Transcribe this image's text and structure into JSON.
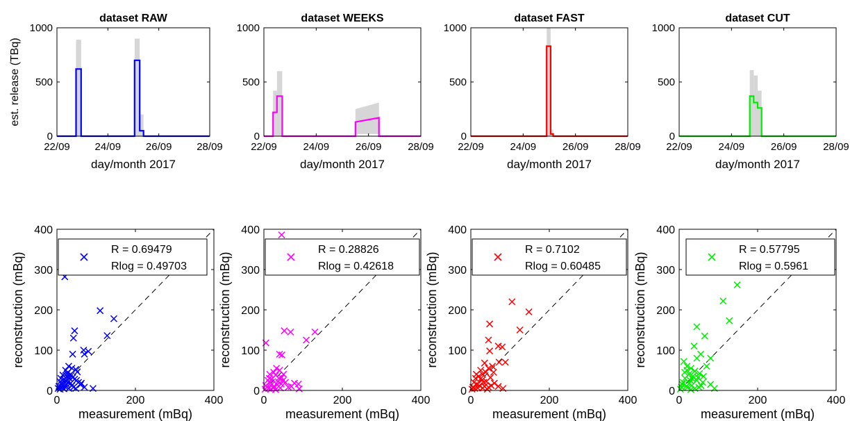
{
  "figure": {
    "top_row": {
      "ylabel": "est. release (TBq)",
      "xlabel": "day/month 2017",
      "ylim": [
        0,
        1000
      ],
      "yticks": [
        0,
        500,
        1000
      ],
      "xticks": [
        "22/09",
        "24/09",
        "26/09",
        "28/09"
      ],
      "band_color": "#d6d6d6"
    },
    "bottom_row": {
      "ylabel": "reconstruction (mBq)",
      "xlabel": "measurement (mBq)",
      "xlim": [
        0,
        400
      ],
      "ylim": [
        0,
        400
      ],
      "xticks": [
        0,
        200,
        400
      ],
      "yticks": [
        0,
        100,
        200,
        300,
        400
      ],
      "reference_line": "dashed y = x"
    }
  },
  "chart_data": [
    {
      "type": "line",
      "panel": "top",
      "title": "dataset RAW",
      "color": "#0000ff",
      "x_unit": "days since 22/09/2017",
      "x": [
        0,
        0.75,
        0.75,
        0.95,
        0.95,
        3.05,
        3.05,
        3.25,
        3.25,
        3.4,
        3.4,
        6
      ],
      "y": [
        0,
        0,
        620,
        620,
        0,
        0,
        700,
        700,
        50,
        50,
        0,
        0
      ],
      "uncertainty_band": [
        {
          "x0": 0.75,
          "x1": 0.95,
          "upper": 890
        },
        {
          "x0": 3.05,
          "x1": 3.25,
          "upper": 900
        },
        {
          "x0": 3.25,
          "x1": 3.4,
          "upper": 200
        }
      ]
    },
    {
      "type": "line",
      "panel": "top",
      "title": "dataset WEEKS",
      "color": "#ff00ff",
      "x_unit": "days since 22/09/2017",
      "x": [
        0,
        0.35,
        0.35,
        0.5,
        0.5,
        0.7,
        0.7,
        3.5,
        3.5,
        4.4,
        4.4,
        6
      ],
      "y": [
        0,
        0,
        220,
        220,
        370,
        370,
        0,
        0,
        130,
        170,
        0,
        0
      ],
      "uncertainty_band": [
        {
          "x0": 0.35,
          "x1": 0.5,
          "upper": 420
        },
        {
          "x0": 0.5,
          "x1": 0.7,
          "upper": 600
        },
        {
          "x0": 3.5,
          "x1": 4.4,
          "upper_start": 250,
          "upper_end": 310,
          "lower": 20
        }
      ]
    },
    {
      "type": "line",
      "panel": "top",
      "title": "dataset FAST",
      "color": "#ff0000",
      "x_unit": "days since 22/09/2017",
      "x": [
        0,
        2.9,
        2.9,
        3.05,
        3.05,
        3.15,
        3.15,
        6
      ],
      "y": [
        0,
        0,
        830,
        830,
        20,
        20,
        0,
        0
      ],
      "uncertainty_band": [
        {
          "x0": 2.9,
          "x1": 3.05,
          "upper": 1000
        },
        {
          "x0": 3.05,
          "x1": 3.15,
          "upper": 60
        }
      ]
    },
    {
      "type": "line",
      "panel": "top",
      "title": "dataset CUT",
      "color": "#00ee00",
      "x_unit": "days since 22/09/2017",
      "x": [
        0,
        2.7,
        2.7,
        2.85,
        2.85,
        3.0,
        3.0,
        3.15,
        3.15,
        6
      ],
      "y": [
        0,
        0,
        370,
        370,
        310,
        310,
        260,
        260,
        0,
        0
      ],
      "uncertainty_band": [
        {
          "x0": 2.7,
          "x1": 2.85,
          "upper": 610
        },
        {
          "x0": 2.85,
          "x1": 3.0,
          "upper": 560
        },
        {
          "x0": 3.0,
          "x1": 3.15,
          "upper": 420
        }
      ]
    },
    {
      "type": "scatter",
      "panel": "bottom",
      "color": "#0000ff",
      "legend": {
        "line1": "R = 0.69479",
        "line2": "Rlog = 0.49703"
      },
      "points": [
        [
          20,
          282
        ],
        [
          110,
          198
        ],
        [
          145,
          178
        ],
        [
          45,
          148
        ],
        [
          42,
          130
        ],
        [
          128,
          136
        ],
        [
          68,
          100
        ],
        [
          80,
          97
        ],
        [
          70,
          90
        ],
        [
          40,
          90
        ],
        [
          30,
          60
        ],
        [
          38,
          55
        ],
        [
          48,
          52
        ],
        [
          52,
          46
        ],
        [
          22,
          50
        ],
        [
          28,
          45
        ],
        [
          35,
          40
        ],
        [
          15,
          38
        ],
        [
          25,
          35
        ],
        [
          10,
          30
        ],
        [
          18,
          28
        ],
        [
          32,
          30
        ],
        [
          40,
          32
        ],
        [
          45,
          28
        ],
        [
          50,
          25
        ],
        [
          55,
          20
        ],
        [
          62,
          18
        ],
        [
          70,
          8
        ],
        [
          92,
          5
        ],
        [
          60,
          14
        ],
        [
          8,
          22
        ],
        [
          12,
          18
        ],
        [
          14,
          12
        ],
        [
          5,
          10
        ],
        [
          3,
          5
        ],
        [
          8,
          3
        ],
        [
          20,
          10
        ],
        [
          25,
          15
        ],
        [
          28,
          20
        ],
        [
          35,
          18
        ],
        [
          38,
          12
        ],
        [
          42,
          8
        ],
        [
          48,
          5
        ],
        [
          30,
          5
        ],
        [
          18,
          4
        ],
        [
          12,
          8
        ],
        [
          22,
          24
        ],
        [
          30,
          36
        ],
        [
          26,
          42
        ],
        [
          16,
          14
        ]
      ]
    },
    {
      "type": "scatter",
      "panel": "bottom",
      "color": "#ff00ff",
      "legend": {
        "line1": "R = 0.28826",
        "line2": "Rlog = 0.42618"
      },
      "points": [
        [
          45,
          386
        ],
        [
          5,
          118
        ],
        [
          52,
          148
        ],
        [
          68,
          145
        ],
        [
          130,
          145
        ],
        [
          108,
          125
        ],
        [
          40,
          90
        ],
        [
          46,
          88
        ],
        [
          32,
          55
        ],
        [
          40,
          50
        ],
        [
          25,
          45
        ],
        [
          15,
          40
        ],
        [
          30,
          38
        ],
        [
          45,
          32
        ],
        [
          20,
          28
        ],
        [
          10,
          25
        ],
        [
          36,
          22
        ],
        [
          55,
          20
        ],
        [
          78,
          18
        ],
        [
          88,
          16
        ],
        [
          70,
          10
        ],
        [
          62,
          8
        ],
        [
          90,
          4
        ],
        [
          5,
          12
        ],
        [
          8,
          8
        ],
        [
          12,
          5
        ],
        [
          18,
          3
        ],
        [
          26,
          10
        ],
        [
          34,
          14
        ],
        [
          42,
          6
        ],
        [
          48,
          24
        ],
        [
          20,
          15
        ],
        [
          14,
          30
        ],
        [
          50,
          40
        ],
        [
          38,
          30
        ],
        [
          3,
          3
        ],
        [
          24,
          6
        ],
        [
          30,
          2
        ],
        [
          44,
          16
        ],
        [
          16,
          20
        ]
      ]
    },
    {
      "type": "scatter",
      "panel": "bottom",
      "color": "#ff0000",
      "legend": {
        "line1": "R = 0.7102",
        "line2": "Rlog = 0.60485"
      },
      "points": [
        [
          105,
          220
        ],
        [
          148,
          195
        ],
        [
          125,
          150
        ],
        [
          48,
          165
        ],
        [
          45,
          125
        ],
        [
          70,
          110
        ],
        [
          80,
          108
        ],
        [
          48,
          98
        ],
        [
          72,
          70
        ],
        [
          88,
          70
        ],
        [
          35,
          68
        ],
        [
          55,
          60
        ],
        [
          45,
          55
        ],
        [
          25,
          50
        ],
        [
          38,
          45
        ],
        [
          30,
          40
        ],
        [
          20,
          35
        ],
        [
          50,
          32
        ],
        [
          12,
          30
        ],
        [
          28,
          25
        ],
        [
          40,
          22
        ],
        [
          60,
          18
        ],
        [
          8,
          20
        ],
        [
          15,
          15
        ],
        [
          22,
          12
        ],
        [
          35,
          10
        ],
        [
          45,
          8
        ],
        [
          52,
          12
        ],
        [
          70,
          10
        ],
        [
          82,
          5
        ],
        [
          5,
          8
        ],
        [
          3,
          3
        ],
        [
          10,
          5
        ],
        [
          18,
          6
        ],
        [
          30,
          6
        ],
        [
          42,
          3
        ],
        [
          26,
          30
        ],
        [
          33,
          20
        ],
        [
          14,
          40
        ],
        [
          58,
          45
        ]
      ]
    },
    {
      "type": "scatter",
      "panel": "bottom",
      "color": "#00ee00",
      "legend": {
        "line1": "R = 0.57795",
        "line2": "Rlog = 0.5961"
      },
      "points": [
        [
          148,
          262
        ],
        [
          112,
          222
        ],
        [
          128,
          173
        ],
        [
          45,
          158
        ],
        [
          65,
          135
        ],
        [
          38,
          110
        ],
        [
          55,
          90
        ],
        [
          45,
          80
        ],
        [
          80,
          80
        ],
        [
          70,
          60
        ],
        [
          12,
          72
        ],
        [
          30,
          55
        ],
        [
          20,
          50
        ],
        [
          40,
          48
        ],
        [
          52,
          42
        ],
        [
          25,
          40
        ],
        [
          35,
          35
        ],
        [
          15,
          30
        ],
        [
          28,
          25
        ],
        [
          45,
          25
        ],
        [
          60,
          20
        ],
        [
          80,
          15
        ],
        [
          90,
          5
        ],
        [
          8,
          15
        ],
        [
          18,
          10
        ],
        [
          22,
          8
        ],
        [
          32,
          12
        ],
        [
          40,
          5
        ],
        [
          50,
          8
        ],
        [
          3,
          3
        ],
        [
          6,
          8
        ],
        [
          10,
          20
        ],
        [
          26,
          18
        ],
        [
          34,
          28
        ],
        [
          48,
          32
        ],
        [
          62,
          35
        ],
        [
          14,
          45
        ],
        [
          56,
          12
        ],
        [
          30,
          2
        ],
        [
          20,
          60
        ]
      ]
    }
  ]
}
